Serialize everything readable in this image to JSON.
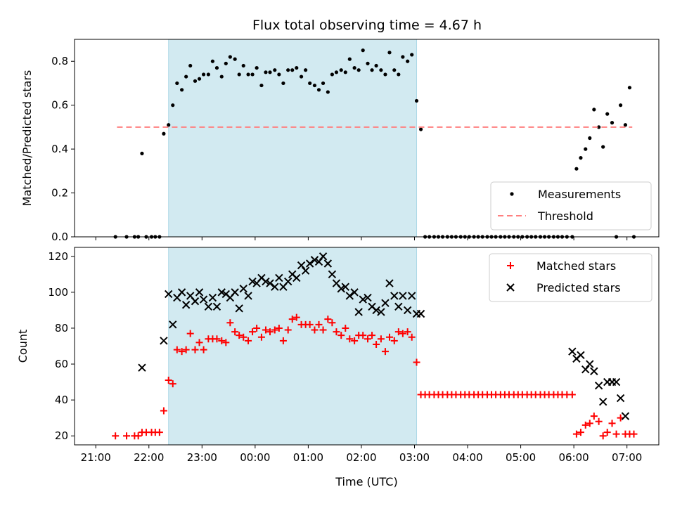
{
  "title": "Flux total observing time = 4.67 h",
  "colors": {
    "shade": "#add8e6",
    "measurement": "#000000",
    "threshold": "#ff7f7f",
    "matched": "#ff0000",
    "predicted": "#000000"
  },
  "x_ticks": [
    {
      "t": 21,
      "label": "21:00"
    },
    {
      "t": 22,
      "label": "22:00"
    },
    {
      "t": 23,
      "label": "23:00"
    },
    {
      "t": 24,
      "label": "00:00"
    },
    {
      "t": 25,
      "label": "01:00"
    },
    {
      "t": 26,
      "label": "02:00"
    },
    {
      "t": 27,
      "label": "03:00"
    },
    {
      "t": 28,
      "label": "04:00"
    },
    {
      "t": 29,
      "label": "05:00"
    },
    {
      "t": 30,
      "label": "06:00"
    },
    {
      "t": 31,
      "label": "07:00"
    }
  ],
  "chart_data": [
    {
      "type": "scatter",
      "title": "Flux total observing time = 4.67 h",
      "xlabel": "",
      "ylabel": "Matched/Predicted stars",
      "xlim": [
        20.6,
        31.6
      ],
      "ylim": [
        0,
        0.9
      ],
      "y_ticks": [
        0.0,
        0.2,
        0.4,
        0.6,
        0.8
      ],
      "y_tick_labels": [
        "0.0",
        "0.2",
        "0.4",
        "0.6",
        "0.8"
      ],
      "shaded_span": [
        22.37,
        27.04
      ],
      "legend": "lower-right",
      "grid": false,
      "series": [
        {
          "name": "Measurements",
          "marker": "dot",
          "x": [
            21.37,
            21.58,
            21.73,
            21.8,
            21.87,
            21.95,
            22.05,
            22.12,
            22.2,
            22.28,
            22.37,
            22.45,
            22.53,
            22.62,
            22.7,
            22.78,
            22.87,
            22.95,
            23.03,
            23.12,
            23.2,
            23.28,
            23.37,
            23.45,
            23.53,
            23.62,
            23.7,
            23.78,
            23.87,
            23.95,
            24.03,
            24.12,
            24.2,
            24.28,
            24.37,
            24.45,
            24.53,
            24.62,
            24.7,
            24.78,
            24.87,
            24.95,
            25.03,
            25.12,
            25.2,
            25.28,
            25.37,
            25.45,
            25.53,
            25.62,
            25.7,
            25.78,
            25.87,
            25.95,
            26.03,
            26.12,
            26.2,
            26.28,
            26.37,
            26.45,
            26.53,
            26.62,
            26.7,
            26.78,
            26.87,
            26.95,
            27.04,
            27.12,
            27.2,
            27.28,
            27.37,
            27.45,
            27.53,
            27.62,
            27.7,
            27.78,
            27.87,
            27.95,
            28.03,
            28.12,
            28.2,
            28.28,
            28.37,
            28.45,
            28.53,
            28.62,
            28.7,
            28.78,
            28.87,
            28.95,
            29.03,
            29.12,
            29.2,
            29.28,
            29.37,
            29.45,
            29.53,
            29.62,
            29.7,
            29.78,
            29.87,
            29.97,
            30.05,
            30.13,
            30.22,
            30.3,
            30.38,
            30.47,
            30.55,
            30.63,
            30.72,
            30.8,
            30.88,
            30.97,
            31.05,
            31.13
          ],
          "y": [
            0.0,
            0.0,
            0.0,
            0.0,
            0.38,
            0.0,
            0.0,
            0.0,
            0.0,
            0.47,
            0.51,
            0.6,
            0.7,
            0.67,
            0.73,
            0.78,
            0.71,
            0.72,
            0.74,
            0.74,
            0.8,
            0.77,
            0.73,
            0.79,
            0.82,
            0.81,
            0.74,
            0.78,
            0.74,
            0.74,
            0.77,
            0.69,
            0.75,
            0.75,
            0.76,
            0.74,
            0.7,
            0.76,
            0.76,
            0.77,
            0.73,
            0.76,
            0.7,
            0.69,
            0.67,
            0.7,
            0.66,
            0.74,
            0.75,
            0.76,
            0.75,
            0.81,
            0.77,
            0.76,
            0.85,
            0.79,
            0.76,
            0.78,
            0.76,
            0.74,
            0.84,
            0.76,
            0.74,
            0.82,
            0.8,
            0.83,
            0.62,
            0.49,
            0.0,
            0.0,
            0.0,
            0.0,
            0.0,
            0.0,
            0.0,
            0.0,
            0.0,
            0.0,
            0.0,
            0.0,
            0.0,
            0.0,
            0.0,
            0.0,
            0.0,
            0.0,
            0.0,
            0.0,
            0.0,
            0.0,
            0.0,
            0.0,
            0.0,
            0.0,
            0.0,
            0.0,
            0.0,
            0.0,
            0.0,
            0.0,
            0.0,
            0.0,
            0.31,
            0.36,
            0.4,
            0.45,
            0.58,
            0.5,
            0.41,
            0.56,
            0.52,
            0.0,
            0.6,
            0.51,
            0.68,
            0.0
          ]
        },
        {
          "name": "Threshold",
          "marker": "dashed-line",
          "x": [
            21.4,
            31.1
          ],
          "y": [
            0.5,
            0.5
          ]
        }
      ]
    },
    {
      "type": "scatter",
      "title": "",
      "xlabel": "Time (UTC)",
      "ylabel": "Count",
      "xlim": [
        20.6,
        31.6
      ],
      "ylim": [
        15,
        125
      ],
      "y_ticks": [
        20,
        40,
        60,
        80,
        100,
        120
      ],
      "y_tick_labels": [
        "20",
        "40",
        "60",
        "80",
        "100",
        "120"
      ],
      "shaded_span": [
        22.37,
        27.04
      ],
      "legend": "top-right",
      "grid": false,
      "series": [
        {
          "name": "Matched stars",
          "marker": "plus",
          "x": [
            21.37,
            21.58,
            21.73,
            21.8,
            21.87,
            21.95,
            22.05,
            22.12,
            22.2,
            22.28,
            22.37,
            22.45,
            22.53,
            22.62,
            22.7,
            22.78,
            22.87,
            22.95,
            23.03,
            23.12,
            23.2,
            23.28,
            23.37,
            23.45,
            23.53,
            23.62,
            23.7,
            23.78,
            23.87,
            23.95,
            24.03,
            24.12,
            24.2,
            24.28,
            24.37,
            24.45,
            24.53,
            24.62,
            24.7,
            24.78,
            24.87,
            24.95,
            25.03,
            25.12,
            25.2,
            25.28,
            25.37,
            25.45,
            25.53,
            25.62,
            25.7,
            25.78,
            25.87,
            25.95,
            26.03,
            26.12,
            26.2,
            26.28,
            26.37,
            26.45,
            26.53,
            26.62,
            26.7,
            26.78,
            26.87,
            26.95,
            27.04,
            27.12,
            27.2,
            27.28,
            27.37,
            27.45,
            27.53,
            27.62,
            27.7,
            27.78,
            27.87,
            27.95,
            28.03,
            28.12,
            28.2,
            28.28,
            28.37,
            28.45,
            28.53,
            28.62,
            28.7,
            28.78,
            28.87,
            28.95,
            29.03,
            29.12,
            29.2,
            29.28,
            29.37,
            29.45,
            29.53,
            29.62,
            29.7,
            29.78,
            29.87,
            29.97,
            30.05,
            30.13,
            30.22,
            30.3,
            30.38,
            30.47,
            30.55,
            30.63,
            30.72,
            30.8,
            30.88,
            30.97,
            31.05,
            31.13
          ],
          "y": [
            20,
            20,
            20,
            20,
            22,
            22,
            22,
            22,
            22,
            34,
            51,
            49,
            68,
            67,
            68,
            77,
            68,
            72,
            68,
            74,
            74,
            74,
            73,
            72,
            83,
            78,
            76,
            75,
            73,
            78,
            80,
            75,
            79,
            78,
            79,
            80,
            73,
            79,
            85,
            86,
            82,
            82,
            82,
            79,
            82,
            79,
            85,
            83,
            78,
            76,
            80,
            74,
            73,
            76,
            76,
            74,
            76,
            71,
            74,
            67,
            75,
            73,
            78,
            77,
            78,
            75,
            61,
            43,
            43,
            43,
            43,
            43,
            43,
            43,
            43,
            43,
            43,
            43,
            43,
            43,
            43,
            43,
            43,
            43,
            43,
            43,
            43,
            43,
            43,
            43,
            43,
            43,
            43,
            43,
            43,
            43,
            43,
            43,
            43,
            43,
            43,
            43,
            21,
            22,
            26,
            27,
            31,
            28,
            20,
            22,
            27,
            21,
            30,
            21,
            21,
            21
          ]
        },
        {
          "name": "Predicted stars",
          "marker": "x",
          "x": [
            21.87,
            22.28,
            22.37,
            22.45,
            22.53,
            22.62,
            22.7,
            22.78,
            22.87,
            22.95,
            23.03,
            23.12,
            23.2,
            23.28,
            23.37,
            23.45,
            23.53,
            23.62,
            23.7,
            23.78,
            23.87,
            23.95,
            24.03,
            24.12,
            24.2,
            24.28,
            24.37,
            24.45,
            24.53,
            24.62,
            24.7,
            24.78,
            24.87,
            24.95,
            25.03,
            25.12,
            25.2,
            25.28,
            25.37,
            25.45,
            25.53,
            25.62,
            25.7,
            25.78,
            25.87,
            25.95,
            26.03,
            26.12,
            26.2,
            26.28,
            26.37,
            26.45,
            26.53,
            26.62,
            26.7,
            26.78,
            26.87,
            26.95,
            27.04,
            27.12,
            29.97,
            30.05,
            30.13,
            30.22,
            30.3,
            30.38,
            30.47,
            30.55,
            30.63,
            30.72,
            30.8,
            30.88,
            30.97
          ],
          "y": [
            58,
            73,
            99,
            82,
            97,
            100,
            93,
            98,
            95,
            100,
            96,
            92,
            97,
            92,
            100,
            99,
            97,
            100,
            91,
            102,
            98,
            106,
            105,
            108,
            106,
            105,
            103,
            108,
            103,
            106,
            110,
            108,
            115,
            112,
            116,
            118,
            117,
            120,
            116,
            110,
            105,
            102,
            103,
            98,
            100,
            89,
            96,
            97,
            92,
            90,
            89,
            94,
            105,
            98,
            92,
            98,
            90,
            98,
            88,
            88,
            67,
            63,
            65,
            57,
            60,
            56,
            48,
            39,
            50,
            50,
            50,
            41,
            31
          ]
        }
      ]
    }
  ]
}
